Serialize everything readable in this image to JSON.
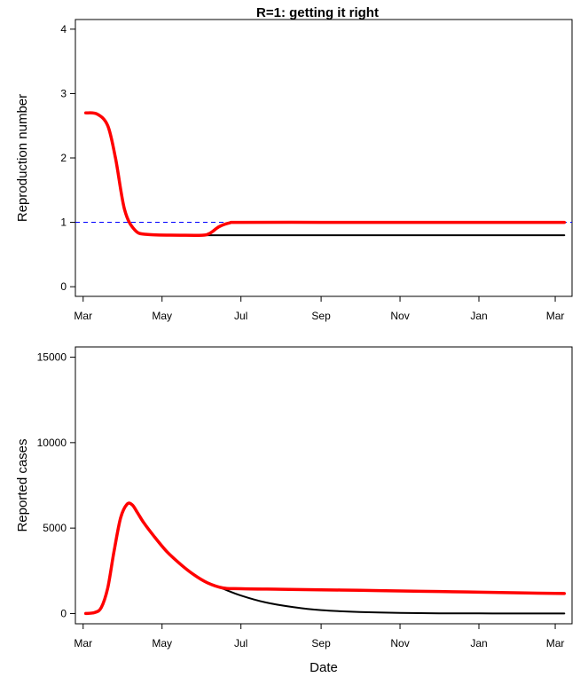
{
  "title": "R=1: getting it right",
  "xlabel": "Date",
  "x_tick_labels": [
    "Mar",
    "May",
    "Jul",
    "Sep",
    "Nov",
    "Jan",
    "Mar"
  ],
  "colors": {
    "baseline": "#000000",
    "scenario": "#ff0000",
    "reference": "#0000ff"
  },
  "chart_data": [
    {
      "type": "line",
      "ylabel": "Reproduction number",
      "xlim": [
        "2020-02-24",
        "2021-03-14"
      ],
      "ylim": [
        -0.15,
        4.15
      ],
      "y_ticks": [
        0,
        1,
        2,
        3,
        4
      ],
      "x_ticks": [
        "2020-03-01",
        "2020-05-01",
        "2020-07-01",
        "2020-09-01",
        "2020-11-01",
        "2021-01-01",
        "2021-03-01"
      ],
      "reference_line": {
        "y": 1,
        "style": "dashed"
      },
      "series": [
        {
          "x": [
            "2020-03-03",
            "2020-03-12",
            "2020-03-20",
            "2020-03-26",
            "2020-04-02",
            "2020-04-10",
            "2020-04-20",
            "2020-05-15",
            "2020-06-30",
            "2020-09-01",
            "2020-11-01",
            "2021-01-01",
            "2021-03-08"
          ],
          "y": [
            2.7,
            2.68,
            2.5,
            2.0,
            1.2,
            0.88,
            0.81,
            0.8,
            0.8,
            0.8,
            0.8,
            0.8,
            0.8
          ]
        },
        {
          "x": [
            "2020-03-03",
            "2020-03-12",
            "2020-03-20",
            "2020-03-26",
            "2020-04-02",
            "2020-04-10",
            "2020-04-20",
            "2020-05-15",
            "2020-06-01",
            "2020-06-07",
            "2020-06-14",
            "2020-06-22",
            "2020-07-01",
            "2020-09-01",
            "2020-11-01",
            "2021-01-01",
            "2021-03-08"
          ],
          "y": [
            2.7,
            2.68,
            2.5,
            2.0,
            1.2,
            0.88,
            0.81,
            0.8,
            0.8,
            0.83,
            0.93,
            0.99,
            1.0,
            1.0,
            1.0,
            1.0,
            1.0
          ]
        }
      ]
    },
    {
      "type": "line",
      "ylabel": "Reported cases",
      "xlim": [
        "2020-02-24",
        "2021-03-14"
      ],
      "ylim": [
        -600,
        15600
      ],
      "y_ticks": [
        0,
        5000,
        10000,
        15000
      ],
      "x_ticks": [
        "2020-03-01",
        "2020-05-01",
        "2020-07-01",
        "2020-09-01",
        "2020-11-01",
        "2021-01-01",
        "2021-03-01"
      ],
      "series": [
        {
          "x": [
            "2020-03-03",
            "2020-03-10",
            "2020-03-15",
            "2020-03-20",
            "2020-03-25",
            "2020-03-30",
            "2020-04-04",
            "2020-04-08",
            "2020-04-12",
            "2020-04-17",
            "2020-04-25",
            "2020-05-05",
            "2020-05-15",
            "2020-05-25",
            "2020-06-05",
            "2020-06-17",
            "2020-07-01",
            "2020-07-20",
            "2020-08-10",
            "2020-09-01",
            "2020-10-01",
            "2020-11-01",
            "2020-12-01",
            "2021-01-01",
            "2021-02-01",
            "2021-03-08"
          ],
          "y": [
            0,
            60,
            350,
            1500,
            3700,
            5600,
            6400,
            6350,
            5900,
            5300,
            4500,
            3600,
            2900,
            2300,
            1800,
            1450,
            1050,
            650,
            380,
            200,
            90,
            35,
            15,
            5,
            2,
            0
          ]
        },
        {
          "x": [
            "2020-03-03",
            "2020-03-10",
            "2020-03-15",
            "2020-03-20",
            "2020-03-25",
            "2020-03-30",
            "2020-04-04",
            "2020-04-08",
            "2020-04-12",
            "2020-04-17",
            "2020-04-25",
            "2020-05-05",
            "2020-05-15",
            "2020-05-25",
            "2020-06-05",
            "2020-06-17",
            "2020-07-01",
            "2020-08-01",
            "2020-09-01",
            "2020-10-01",
            "2020-11-01",
            "2020-12-01",
            "2021-01-01",
            "2021-02-01",
            "2021-03-08"
          ],
          "y": [
            0,
            60,
            350,
            1500,
            3700,
            5600,
            6400,
            6350,
            5900,
            5300,
            4500,
            3600,
            2900,
            2300,
            1800,
            1500,
            1450,
            1420,
            1390,
            1360,
            1320,
            1290,
            1250,
            1210,
            1170
          ]
        }
      ]
    }
  ]
}
